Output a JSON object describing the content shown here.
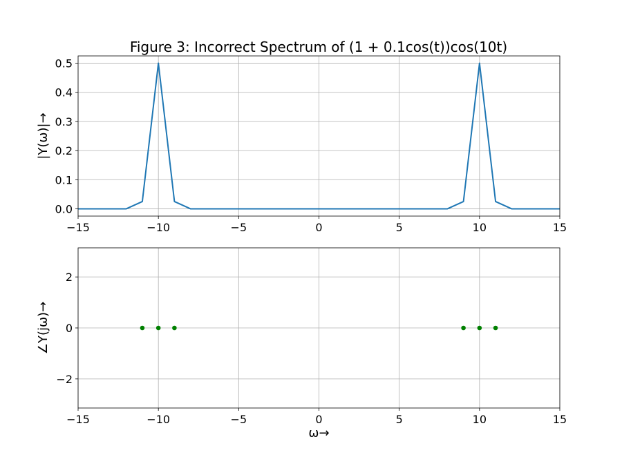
{
  "chart_data": [
    {
      "type": "line",
      "title": "Figure 3: Incorrect Spectrum of (1 + 0.1cos(t))cos(10t)",
      "xlabel": "",
      "ylabel": "|Y(ω)|→",
      "xlim": [
        -15,
        15
      ],
      "ylim": [
        -0.025,
        0.525
      ],
      "xticks": [
        -15,
        -10,
        -5,
        0,
        5,
        10,
        15
      ],
      "xtick_labels": [
        "−15",
        "−10",
        "−5",
        "0",
        "5",
        "10",
        "15"
      ],
      "yticks": [
        0.0,
        0.1,
        0.2,
        0.3,
        0.4,
        0.5
      ],
      "ytick_labels": [
        "0.0",
        "0.1",
        "0.2",
        "0.3",
        "0.4",
        "0.5"
      ],
      "grid": true,
      "color": "#1f77b4",
      "series": [
        {
          "x": [
            -15,
            -14,
            -13,
            -12,
            -11,
            -10,
            -9,
            -8,
            -7,
            -6,
            -5,
            -4,
            -3,
            -2,
            -1,
            0,
            1,
            2,
            3,
            4,
            5,
            6,
            7,
            8,
            9,
            10,
            11,
            12,
            13,
            14,
            15
          ],
          "y": [
            0,
            0,
            0,
            0,
            0.025,
            0.5,
            0.025,
            0,
            0,
            0,
            0,
            0,
            0,
            0,
            0,
            0,
            0,
            0,
            0,
            0,
            0,
            0,
            0,
            0,
            0.025,
            0.5,
            0.025,
            0,
            0,
            0,
            0
          ]
        }
      ]
    },
    {
      "type": "scatter",
      "title": "",
      "xlabel": "ω→",
      "ylabel": "∠Y(jω)→",
      "xlim": [
        -15,
        15
      ],
      "ylim": [
        -3.14159,
        3.14159
      ],
      "xticks": [
        -15,
        -10,
        -5,
        0,
        5,
        10,
        15
      ],
      "xtick_labels": [
        "−15",
        "−10",
        "−5",
        "0",
        "5",
        "10",
        "15"
      ],
      "yticks": [
        -2,
        0,
        2
      ],
      "ytick_labels": [
        "−2",
        "0",
        "2"
      ],
      "grid": true,
      "color": "#008000",
      "series": [
        {
          "x": [
            -11,
            -10,
            -9,
            9,
            10,
            11
          ],
          "y": [
            0,
            0,
            0,
            0,
            0,
            0
          ]
        }
      ]
    }
  ]
}
